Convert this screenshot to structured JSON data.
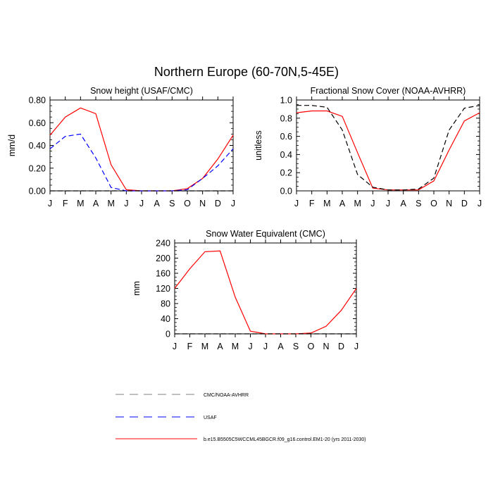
{
  "figure": {
    "title": "Northern Europe (60-70N,5-45E)"
  },
  "months": [
    "J",
    "F",
    "M",
    "A",
    "M",
    "J",
    "J",
    "A",
    "S",
    "O",
    "N",
    "D",
    "J"
  ],
  "colors": {
    "model": "#ff0000",
    "usaf": "#0000ff",
    "cmc": "#000000",
    "axis": "#000000",
    "legend_gray": "#808080"
  },
  "legend": {
    "items": [
      {
        "label": "CMC/NOAA-AVHRR",
        "style": "dashed",
        "color": "#808080"
      },
      {
        "label": "USAF",
        "style": "dashed",
        "color": "#0000ff"
      },
      {
        "label": "b.e15.B5505C5WCCML45BGCR.f09_g16.control.EM1-20 (yrs 2011-2030)",
        "style": "solid",
        "color": "#ff0000"
      }
    ]
  },
  "chart_data": [
    {
      "id": "snow-height",
      "type": "line",
      "title": "Snow height (USAF/CMC)",
      "xlabel": "",
      "ylabel": "mm/d",
      "ylim": [
        0,
        0.8
      ],
      "yticks": [
        "0.00",
        "0.20",
        "0.40",
        "0.60",
        "0.80"
      ],
      "ytick_values": [
        0,
        0.2,
        0.4,
        0.6,
        0.8
      ],
      "categories": [
        "J",
        "F",
        "M",
        "A",
        "M",
        "J",
        "J",
        "A",
        "S",
        "O",
        "N",
        "D",
        "J"
      ],
      "series": [
        {
          "name": "model",
          "color": "#ff0000",
          "dash": "",
          "values": [
            0.49,
            0.65,
            0.73,
            0.68,
            0.23,
            0.01,
            0.0,
            0.0,
            0.0,
            0.02,
            0.11,
            0.28,
            0.49
          ]
        },
        {
          "name": "USAF",
          "color": "#0000ff",
          "dash": "7,4",
          "values": [
            0.37,
            0.48,
            0.5,
            0.29,
            0.03,
            0.0,
            0.0,
            0.0,
            0.0,
            0.01,
            0.11,
            0.22,
            0.37
          ]
        },
        {
          "name": "CMC",
          "color": "#000000",
          "dash": "7,4",
          "values": [
            0.0,
            0.0,
            0.0,
            0.0,
            0.0,
            0.0,
            0.0,
            0.0,
            0.0,
            0.0,
            0.0,
            0.0,
            0.0
          ]
        }
      ]
    },
    {
      "id": "fractional-snow-cover",
      "type": "line",
      "title": "Fractional Snow Cover (NOAA-AVHRR)",
      "xlabel": "",
      "ylabel": "unitless",
      "ylim": [
        0,
        1.0
      ],
      "yticks": [
        "0.0",
        "0.2",
        "0.4",
        "0.6",
        "0.8",
        "1.0"
      ],
      "ytick_values": [
        0,
        0.2,
        0.4,
        0.6,
        0.8,
        1.0
      ],
      "categories": [
        "J",
        "F",
        "M",
        "A",
        "M",
        "J",
        "J",
        "A",
        "S",
        "O",
        "N",
        "D",
        "J"
      ],
      "series": [
        {
          "name": "model",
          "color": "#ff0000",
          "dash": "",
          "values": [
            0.86,
            0.88,
            0.88,
            0.82,
            0.42,
            0.03,
            0.01,
            0.01,
            0.01,
            0.11,
            0.45,
            0.77,
            0.86
          ]
        },
        {
          "name": "NOAA-AVHRR",
          "color": "#000000",
          "dash": "7,4",
          "values": [
            0.94,
            0.94,
            0.92,
            0.67,
            0.18,
            0.04,
            0.01,
            0.01,
            0.02,
            0.14,
            0.67,
            0.91,
            0.94
          ]
        }
      ]
    },
    {
      "id": "snow-water-equivalent",
      "type": "line",
      "title": "Snow Water Equivalent (CMC)",
      "xlabel": "",
      "ylabel": "mm",
      "ylim": [
        0,
        240
      ],
      "yticks": [
        "0",
        "40",
        "80",
        "120",
        "160",
        "200",
        "240"
      ],
      "ytick_values": [
        0,
        40,
        80,
        120,
        160,
        200,
        240
      ],
      "categories": [
        "J",
        "F",
        "M",
        "A",
        "M",
        "J",
        "J",
        "A",
        "S",
        "O",
        "N",
        "D",
        "J"
      ],
      "series": [
        {
          "name": "model",
          "color": "#ff0000",
          "dash": "",
          "values": [
            120,
            172,
            217,
            219,
            97,
            7,
            0,
            0,
            0,
            2,
            20,
            62,
            120
          ]
        },
        {
          "name": "CMC",
          "color": "#000000",
          "dash": "7,4",
          "values": [
            0,
            0,
            0,
            0,
            0,
            0,
            0,
            0,
            0,
            0,
            0,
            0,
            0
          ]
        }
      ]
    }
  ]
}
